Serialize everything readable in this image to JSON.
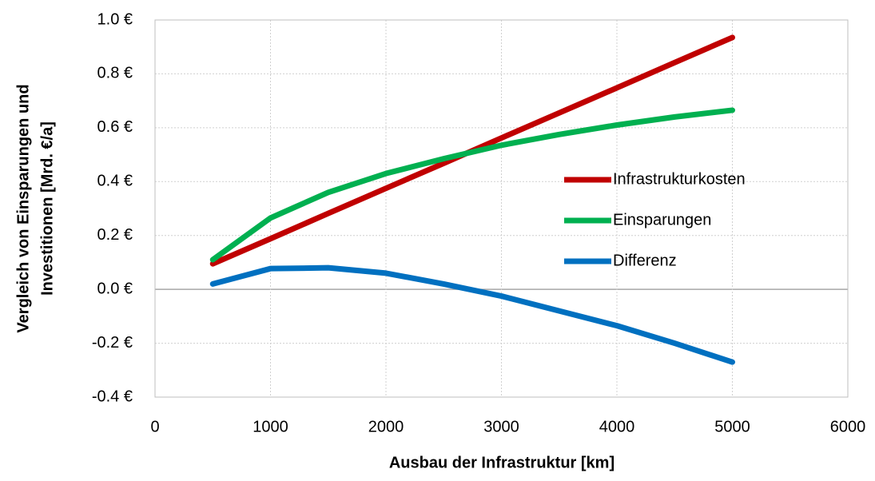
{
  "chart_data": {
    "type": "line",
    "xlabel": "Ausbau der Infrastruktur [km]",
    "ylabel": [
      "Vergleich von Einsparungen und",
      "Investitionen  [Mrd. €/a]"
    ],
    "x": [
      500,
      1000,
      1500,
      2000,
      2500,
      3000,
      3500,
      4000,
      4500,
      5000
    ],
    "series": [
      {
        "name": "Infrastrukturkosten",
        "color": "#c00000",
        "values": [
          0.095,
          0.188,
          0.282,
          0.375,
          0.468,
          0.562,
          0.655,
          0.748,
          0.842,
          0.935
        ]
      },
      {
        "name": "Einsparungen",
        "color": "#00b050",
        "values": [
          0.11,
          0.265,
          0.36,
          0.43,
          0.485,
          0.535,
          0.575,
          0.61,
          0.64,
          0.665
        ]
      },
      {
        "name": "Differenz",
        "color": "#0070c0",
        "values": [
          0.02,
          0.077,
          0.08,
          0.06,
          0.02,
          -0.025,
          -0.08,
          -0.135,
          -0.2,
          -0.27
        ]
      }
    ],
    "xlim": [
      0,
      6000
    ],
    "xticks": [
      0,
      1000,
      2000,
      3000,
      4000,
      5000,
      6000
    ],
    "ylim": [
      -0.4,
      1.0
    ],
    "yticks": [
      {
        "value": -0.4,
        "label": "-0.4 €"
      },
      {
        "value": -0.2,
        "label": "-0.2 €"
      },
      {
        "value": 0,
        "label": "0.0 €"
      },
      {
        "value": 0.2,
        "label": "0.2 €"
      },
      {
        "value": 0.4,
        "label": "0.4 €"
      },
      {
        "value": 0.6,
        "label": "0.6 €"
      },
      {
        "value": 0.8,
        "label": "0.8 €"
      },
      {
        "value": 1.0,
        "label": "1.0 €"
      }
    ],
    "grid": true,
    "legend": "right"
  }
}
